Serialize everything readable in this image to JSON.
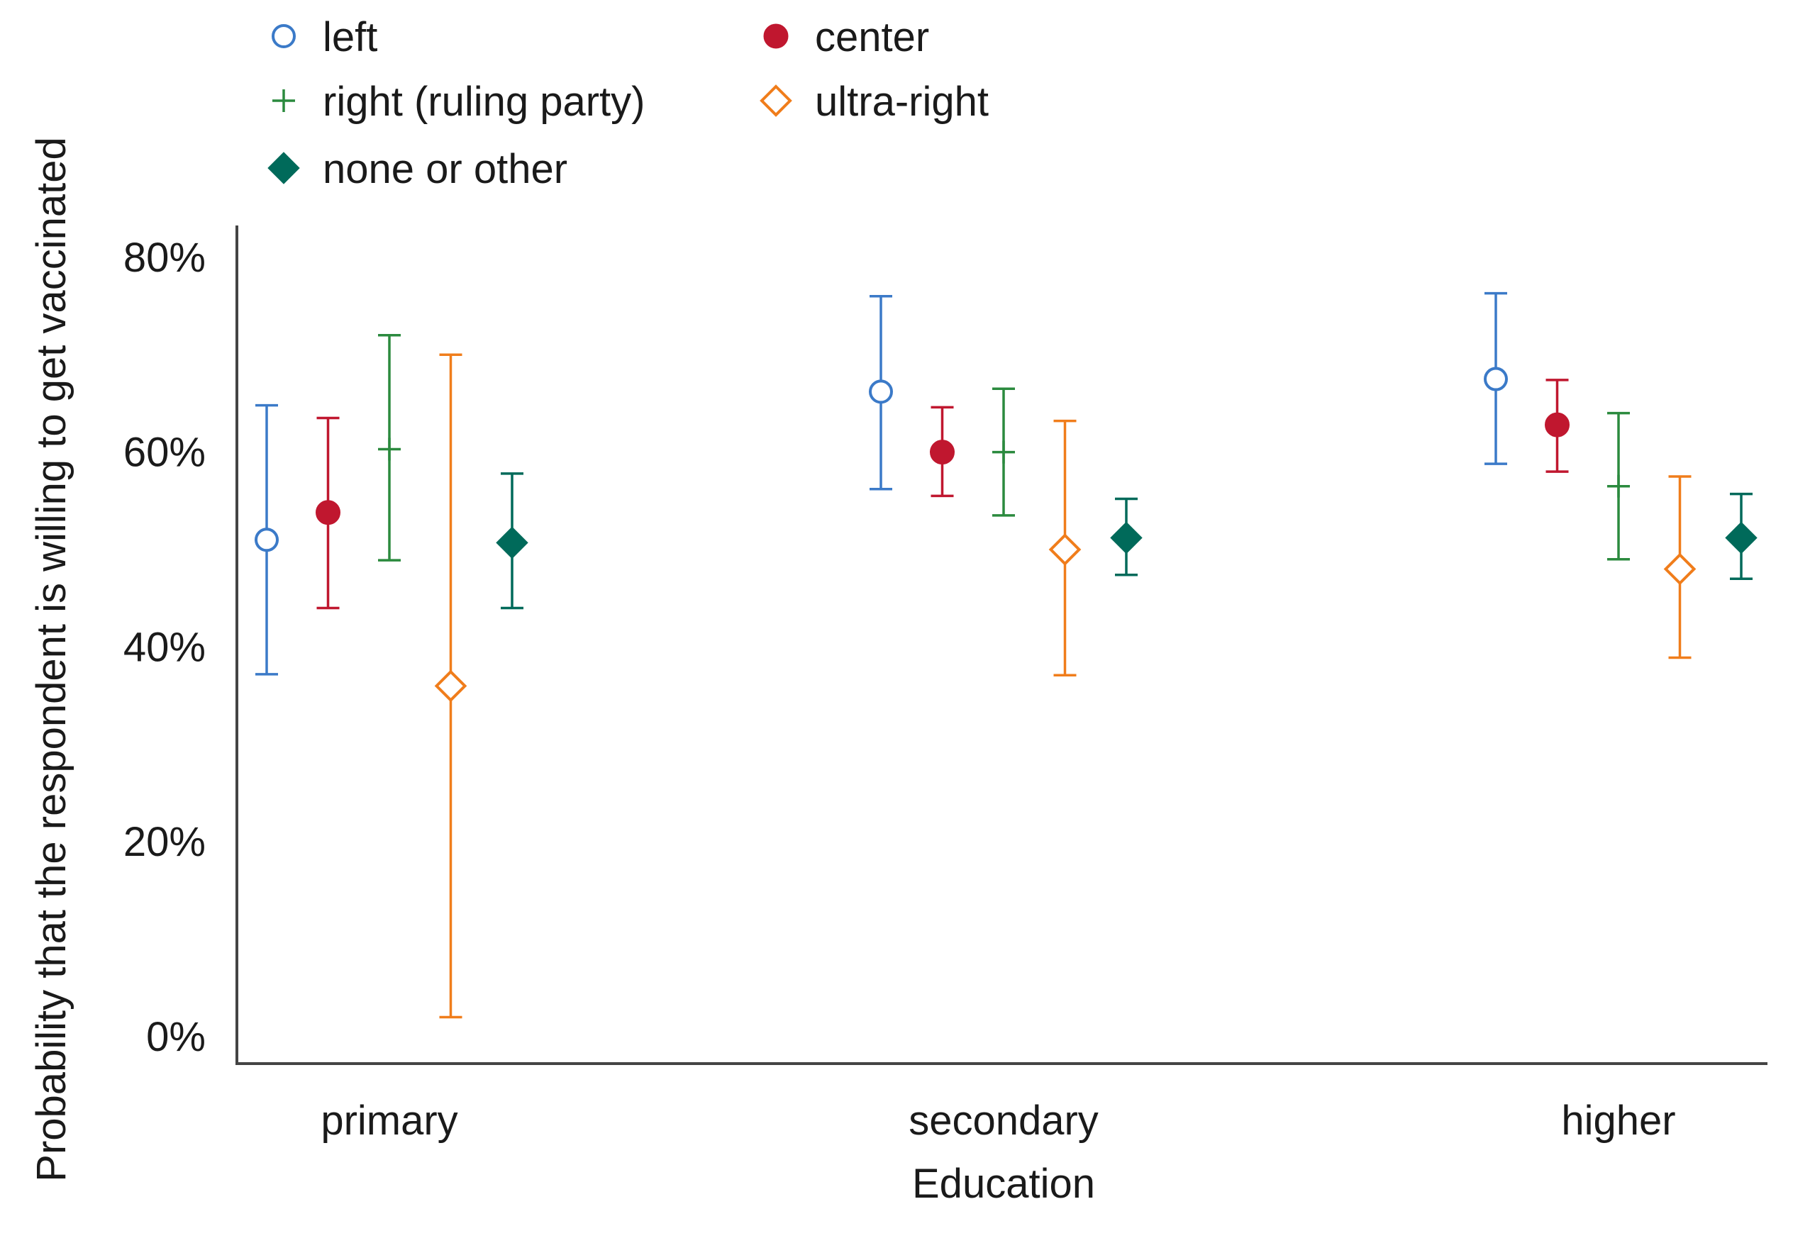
{
  "chart_data": {
    "type": "scatter",
    "subtype": "point-with-error-bars",
    "title": "",
    "xlabel": "Education",
    "ylabel": "Probability that the respondent is willing to get vaccinated",
    "categories": [
      "primary",
      "secondary",
      "higher"
    ],
    "ylim": [
      0,
      0.86
    ],
    "yticks": [
      0,
      0.2,
      0.4,
      0.6,
      0.8
    ],
    "ytick_labels": [
      "0%",
      "20%",
      "40%",
      "60%",
      "80%"
    ],
    "grid": false,
    "legend_position": "top-left, outside plot",
    "series": [
      {
        "name": "left",
        "marker": "open-circle",
        "color": "#3b7ac8",
        "values": [
          0.51,
          0.662,
          0.675
        ],
        "lower": [
          0.372,
          0.562,
          0.588
        ],
        "upper": [
          0.648,
          0.76,
          0.763
        ]
      },
      {
        "name": "center",
        "marker": "filled-circle",
        "color": "#c0172f",
        "values": [
          0.538,
          0.6,
          0.628
        ],
        "lower": [
          0.44,
          0.555,
          0.58
        ],
        "upper": [
          0.635,
          0.646,
          0.674
        ]
      },
      {
        "name": "right (ruling party)",
        "marker": "plus",
        "color": "#2b8a3e",
        "values": [
          0.603,
          0.6,
          0.565
        ],
        "lower": [
          0.489,
          0.535,
          0.49
        ],
        "upper": [
          0.72,
          0.665,
          0.64
        ]
      },
      {
        "name": "ultra-right",
        "marker": "open-diamond",
        "color": "#f07d1b",
        "values": [
          0.36,
          0.5,
          0.48
        ],
        "lower": [
          0.02,
          0.371,
          0.389
        ],
        "upper": [
          0.7,
          0.632,
          0.575
        ]
      },
      {
        "name": "none or other",
        "marker": "filled-diamond",
        "color": "#006a5a",
        "values": [
          0.507,
          0.512,
          0.512
        ],
        "lower": [
          0.44,
          0.474,
          0.47
        ],
        "upper": [
          0.578,
          0.552,
          0.557
        ]
      }
    ]
  }
}
